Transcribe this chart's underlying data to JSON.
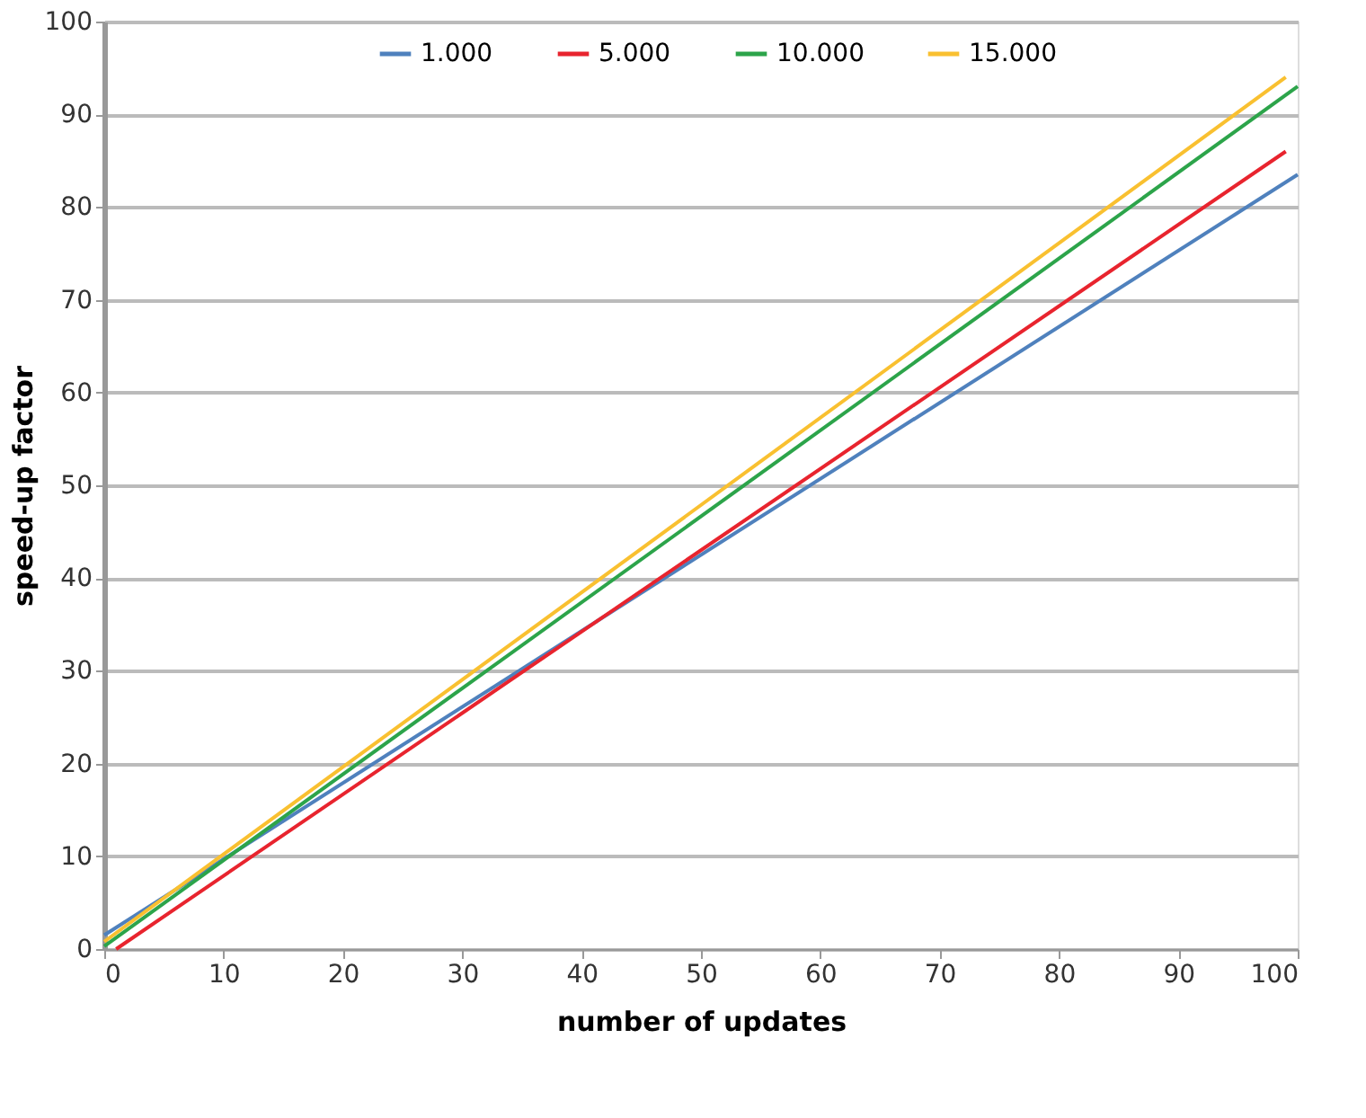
{
  "chart_data": {
    "type": "line",
    "xlabel": "number of updates",
    "ylabel": "speed-up   factor",
    "xlim": [
      0,
      100
    ],
    "xticks": [
      0,
      10,
      20,
      30,
      40,
      50,
      60,
      70,
      80,
      90,
      100
    ],
    "ylim": [
      0,
      100
    ],
    "yticks": [
      0,
      10,
      20,
      30,
      40,
      50,
      60,
      70,
      80,
      90,
      100
    ],
    "grid": "y",
    "legend": "top",
    "line_style": "solid",
    "marker": "none",
    "series": [
      {
        "name": "1.000",
        "color": "#4f81bd",
        "x": [
          0,
          100
        ],
        "values": [
          1.5,
          83.5
        ]
      },
      {
        "name": "5.000",
        "color": "#e8242e",
        "x": [
          1,
          99
        ],
        "values": [
          0,
          86
        ]
      },
      {
        "name": "10.000",
        "color": "#2ca44a",
        "x": [
          0,
          100
        ],
        "values": [
          0.3,
          93
        ]
      },
      {
        "name": "15.000",
        "color": "#f9c030",
        "x": [
          0,
          99
        ],
        "values": [
          0.8,
          94
        ]
      }
    ]
  }
}
